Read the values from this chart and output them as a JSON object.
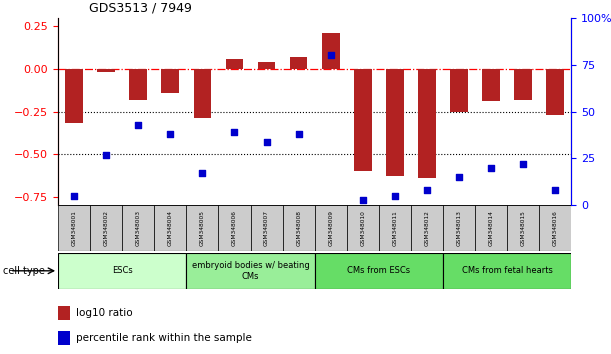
{
  "title": "GDS3513 / 7949",
  "samples": [
    "GSM348001",
    "GSM348002",
    "GSM348003",
    "GSM348004",
    "GSM348005",
    "GSM348006",
    "GSM348007",
    "GSM348008",
    "GSM348009",
    "GSM348010",
    "GSM348011",
    "GSM348012",
    "GSM348013",
    "GSM348014",
    "GSM348015",
    "GSM348016"
  ],
  "log10_ratio": [
    -0.32,
    -0.02,
    -0.18,
    -0.14,
    -0.29,
    0.06,
    0.04,
    0.07,
    0.21,
    -0.6,
    -0.63,
    -0.64,
    -0.25,
    -0.19,
    -0.18,
    -0.27
  ],
  "percentile_rank": [
    5,
    27,
    43,
    38,
    17,
    39,
    34,
    38,
    80,
    3,
    5,
    8,
    15,
    20,
    22,
    8
  ],
  "bar_color": "#b22222",
  "dot_color": "#0000cc",
  "ylim_left": [
    -0.8,
    0.3
  ],
  "ylim_right": [
    0,
    100
  ],
  "yticks_left": [
    0.25,
    0.0,
    -0.25,
    -0.5,
    -0.75
  ],
  "yticks_right": [
    100,
    75,
    50,
    25,
    0
  ],
  "hline_dash": 0.0,
  "hline_dot1": -0.25,
  "hline_dot2": -0.5,
  "cell_types": [
    {
      "label": "ESCs",
      "start": 0,
      "end": 4,
      "color": "#ccffcc"
    },
    {
      "label": "embryoid bodies w/ beating\nCMs",
      "start": 4,
      "end": 8,
      "color": "#99ee99"
    },
    {
      "label": "CMs from ESCs",
      "start": 8,
      "end": 12,
      "color": "#66dd66"
    },
    {
      "label": "CMs from fetal hearts",
      "start": 12,
      "end": 16,
      "color": "#66dd66"
    }
  ],
  "legend_red": "log10 ratio",
  "legend_blue": "percentile rank within the sample",
  "xlabel_arrow_text": "cell type"
}
